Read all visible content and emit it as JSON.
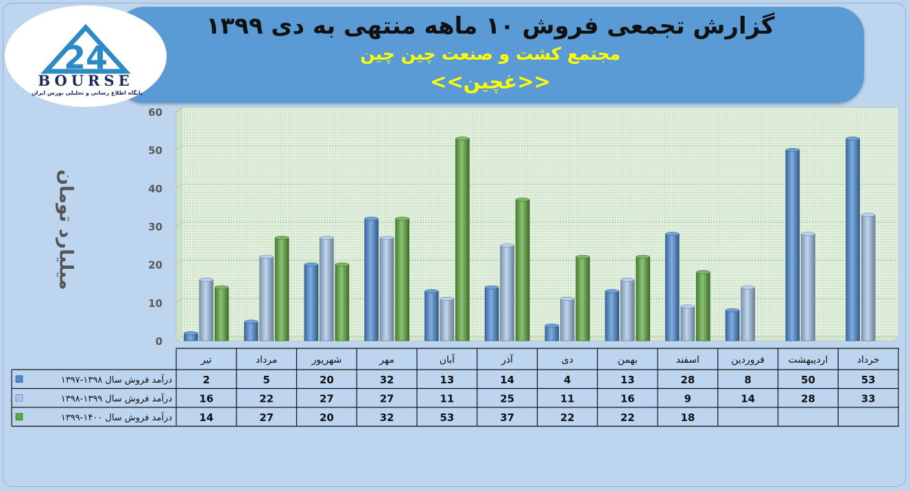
{
  "header": {
    "line1": "گزارش تجمعی فروش ۱۰ ماهه منتهی به دی ۱۳۹۹",
    "line2": "مجتمع کشت و صنعت چین چین",
    "line3": "<<غچین>>"
  },
  "logo": {
    "text": "BOURSE",
    "mark": "24",
    "subtitle": "پایگاه اطلاع رسانی و تحلیلی بورس ایران"
  },
  "chart_data": {
    "type": "bar",
    "ylabel": "میلیارد تومان",
    "ylim": [
      0,
      60
    ],
    "yticks": [
      0,
      10,
      20,
      30,
      40,
      50,
      60
    ],
    "grid": true,
    "categories": [
      "تیر",
      "مرداد",
      "شهریور",
      "مهر",
      "آبان",
      "آذر",
      "دی",
      "بهمن",
      "اسفند",
      "فروردین",
      "اردیبهشت",
      "خرداد"
    ],
    "series": [
      {
        "name": "درآمد فروش سال ۱۳۹۸-۱۳۹۷",
        "color": "#4a8ad2",
        "values": [
          2,
          5,
          20,
          32,
          13,
          14,
          4,
          13,
          28,
          8,
          50,
          53
        ],
        "labels": [
          "2",
          "5",
          "20",
          "32",
          "13",
          "14",
          "4",
          "13",
          "28",
          "8",
          "50",
          "53"
        ]
      },
      {
        "name": "درآمد فروش سال ۱۳۹۹-۱۳۹۸",
        "color": "#a5c4e8",
        "values": [
          16,
          22,
          27,
          27,
          11,
          25,
          11,
          16,
          9,
          14,
          28,
          33
        ],
        "labels": [
          "16",
          "22",
          "27",
          "27",
          "11",
          "25",
          "11",
          "16",
          "9",
          "14",
          "28",
          "33"
        ]
      },
      {
        "name": "درآمد فروش سال ۱۴۰۰-۱۳۹۹",
        "color": "#5aa83b",
        "values": [
          14,
          27,
          20,
          32,
          53,
          37,
          22,
          22,
          18,
          null,
          null,
          null
        ],
        "labels": [
          "14",
          "27",
          "20",
          "32",
          "53",
          "37",
          "22",
          "22",
          "18",
          "",
          "",
          ""
        ]
      }
    ]
  }
}
